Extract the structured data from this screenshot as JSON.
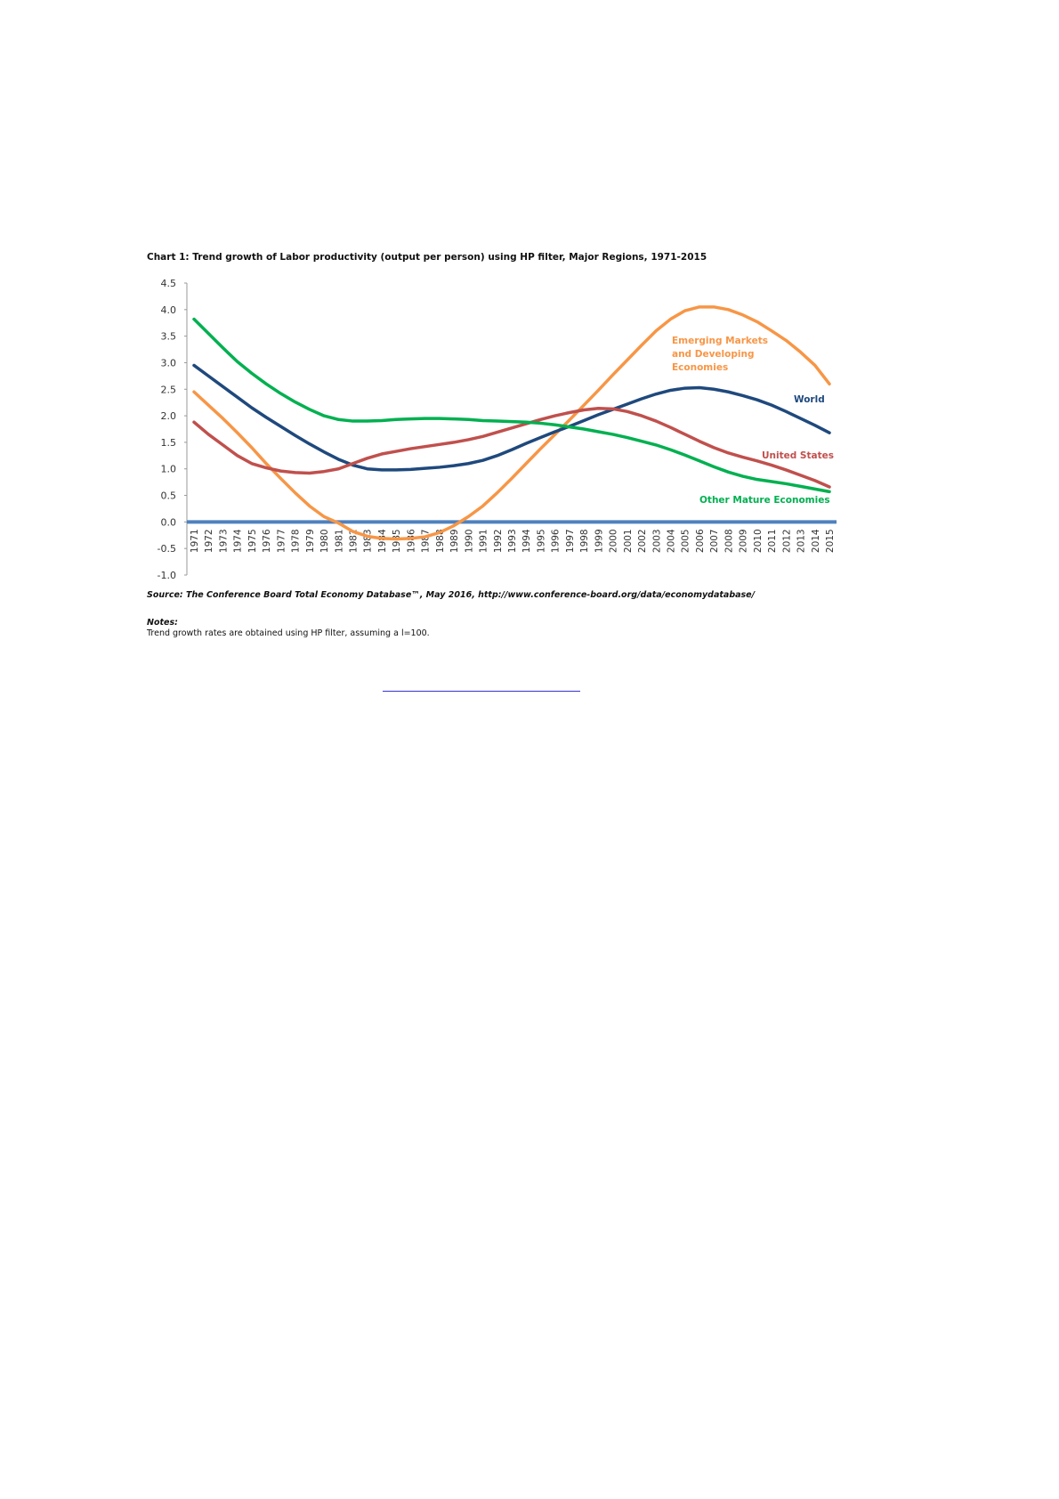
{
  "chart_data": {
    "type": "line",
    "title": "Chart 1: Trend growth of Labor productivity (output per person) using HP filter, Major Regions, 1971-2015",
    "categories": [
      "1971",
      "1972",
      "1973",
      "1974",
      "1975",
      "1976",
      "1977",
      "1978",
      "1979",
      "1980",
      "1981",
      "1982",
      "1983",
      "1984",
      "1985",
      "1986",
      "1987",
      "1988",
      "1989",
      "1990",
      "1991",
      "1992",
      "1993",
      "1994",
      "1995",
      "1996",
      "1997",
      "1998",
      "1999",
      "2000",
      "2001",
      "2002",
      "2003",
      "2004",
      "2005",
      "2006",
      "2007",
      "2008",
      "2009",
      "2010",
      "2011",
      "2012",
      "2013",
      "2014",
      "2015"
    ],
    "series": [
      {
        "name": "Emerging Markets and Developing Economies",
        "color": "#f79646",
        "values": [
          2.45,
          2.2,
          1.95,
          1.68,
          1.4,
          1.1,
          0.82,
          0.55,
          0.3,
          0.1,
          -0.02,
          -0.18,
          -0.27,
          -0.31,
          -0.32,
          -0.31,
          -0.28,
          -0.2,
          -0.07,
          0.1,
          0.3,
          0.55,
          0.82,
          1.1,
          1.38,
          1.65,
          1.92,
          2.2,
          2.48,
          2.77,
          3.05,
          3.33,
          3.6,
          3.82,
          3.98,
          4.05,
          4.05,
          4.0,
          3.9,
          3.77,
          3.6,
          3.42,
          3.2,
          2.95,
          2.6
        ]
      },
      {
        "name": "World",
        "color": "#1f497d",
        "values": [
          2.95,
          2.75,
          2.55,
          2.35,
          2.15,
          1.97,
          1.8,
          1.63,
          1.47,
          1.32,
          1.18,
          1.07,
          1.0,
          0.98,
          0.98,
          0.99,
          1.01,
          1.03,
          1.06,
          1.1,
          1.16,
          1.25,
          1.36,
          1.48,
          1.59,
          1.7,
          1.8,
          1.91,
          2.02,
          2.12,
          2.22,
          2.32,
          2.41,
          2.48,
          2.52,
          2.53,
          2.5,
          2.45,
          2.38,
          2.3,
          2.2,
          2.08,
          1.95,
          1.82,
          1.68
        ]
      },
      {
        "name": "United States",
        "color": "#c0504d",
        "values": [
          1.88,
          1.65,
          1.45,
          1.25,
          1.1,
          1.02,
          0.96,
          0.93,
          0.92,
          0.95,
          1.0,
          1.1,
          1.2,
          1.28,
          1.33,
          1.38,
          1.42,
          1.46,
          1.5,
          1.55,
          1.61,
          1.69,
          1.77,
          1.85,
          1.93,
          2.0,
          2.06,
          2.11,
          2.14,
          2.13,
          2.08,
          2.0,
          1.9,
          1.78,
          1.65,
          1.52,
          1.4,
          1.3,
          1.22,
          1.15,
          1.07,
          0.98,
          0.88,
          0.78,
          0.66
        ]
      },
      {
        "name": "Other Mature Economies",
        "color": "#00b050",
        "values": [
          3.82,
          3.55,
          3.28,
          3.02,
          2.8,
          2.6,
          2.42,
          2.26,
          2.12,
          2.0,
          1.93,
          1.9,
          1.9,
          1.91,
          1.93,
          1.94,
          1.95,
          1.95,
          1.94,
          1.93,
          1.91,
          1.9,
          1.89,
          1.88,
          1.86,
          1.83,
          1.79,
          1.75,
          1.7,
          1.65,
          1.59,
          1.52,
          1.45,
          1.36,
          1.26,
          1.15,
          1.04,
          0.94,
          0.86,
          0.8,
          0.76,
          0.72,
          0.67,
          0.62,
          0.57
        ]
      }
    ],
    "ylim": [
      -1,
      4.5
    ],
    "yticks": [
      -0.5,
      {
        "value": -1,
        "label": "-1.0"
      },
      {
        "value": 0,
        "label": "0.0"
      },
      0.5,
      {
        "value": 1,
        "label": "1.0"
      },
      1.5,
      {
        "value": 2,
        "label": "2.0"
      },
      2.5,
      {
        "value": 3,
        "label": "3.0"
      },
      3.5,
      {
        "value": 4,
        "label": "4.0"
      },
      4.5
    ],
    "source": "Source: The Conference Board Total Economy Database™, May 2016, http://www.conference-board.org/data/economydatabase/",
    "notes_heading": "Notes:",
    "notes": "Trend growth rates are obtained using HP filter, assuming a l=100."
  }
}
